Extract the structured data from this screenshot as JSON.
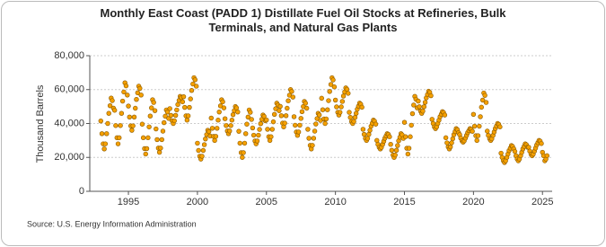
{
  "chart_data": {
    "type": "scatter",
    "title": "Monthly East Coast (PADD 1) Distillate Fuel Oil Stocks at Refineries, Bulk Terminals, and Natural Gas Plants",
    "y_label": "Thousand Barrels",
    "source": "Source: U.S. Energy Information Administration",
    "color": "#f5a000",
    "edge_color": "#8a5a00",
    "xlim": [
      1992.2,
      2025.7
    ],
    "xticks": [
      1995,
      2000,
      2005,
      2010,
      2015,
      2020,
      2025
    ],
    "ylim": [
      0,
      80000
    ],
    "yticks": [
      {
        "value": 0,
        "label": "0"
      },
      {
        "value": 20000,
        "label": "20,000"
      },
      {
        "value": 40000,
        "label": "40,000"
      },
      {
        "value": 60000,
        "label": "60,000"
      },
      {
        "value": 80000,
        "label": "80,000"
      }
    ],
    "grid": true,
    "x": [
      1993,
      1993.08,
      1993.17,
      1993.25,
      1993.33,
      1993.42,
      1993.5,
      1993.58,
      1993.67,
      1993.75,
      1993.83,
      1993.92,
      1994,
      1994.08,
      1994.17,
      1994.25,
      1994.33,
      1994.42,
      1994.5,
      1994.58,
      1994.67,
      1994.75,
      1994.83,
      1994.92,
      1995,
      1995.08,
      1995.17,
      1995.25,
      1995.33,
      1995.42,
      1995.5,
      1995.58,
      1995.67,
      1995.75,
      1995.83,
      1995.92,
      1996,
      1996.08,
      1996.17,
      1996.25,
      1996.33,
      1996.42,
      1996.5,
      1996.58,
      1996.67,
      1996.75,
      1996.83,
      1996.92,
      1997,
      1997.08,
      1997.17,
      1997.25,
      1997.33,
      1997.42,
      1997.5,
      1997.58,
      1997.67,
      1997.75,
      1997.83,
      1997.92,
      1998,
      1998.08,
      1998.17,
      1998.25,
      1998.33,
      1998.42,
      1998.5,
      1998.58,
      1998.67,
      1998.75,
      1998.83,
      1998.92,
      1999,
      1999.08,
      1999.17,
      1999.25,
      1999.33,
      1999.42,
      1999.5,
      1999.58,
      1999.67,
      1999.75,
      1999.83,
      1999.92,
      2000,
      2000.08,
      2000.17,
      2000.25,
      2000.33,
      2000.42,
      2000.5,
      2000.58,
      2000.67,
      2000.75,
      2000.83,
      2000.92,
      2001,
      2001.08,
      2001.17,
      2001.25,
      2001.33,
      2001.42,
      2001.5,
      2001.58,
      2001.67,
      2001.75,
      2001.83,
      2001.92,
      2002,
      2002.08,
      2002.17,
      2002.25,
      2002.33,
      2002.42,
      2002.5,
      2002.58,
      2002.67,
      2002.75,
      2002.83,
      2002.92,
      2003,
      2003.08,
      2003.17,
      2003.25,
      2003.33,
      2003.42,
      2003.5,
      2003.58,
      2003.67,
      2003.75,
      2003.83,
      2003.92,
      2004,
      2004.08,
      2004.17,
      2004.25,
      2004.33,
      2004.42,
      2004.5,
      2004.58,
      2004.67,
      2004.75,
      2004.83,
      2004.92,
      2005,
      2005.08,
      2005.17,
      2005.25,
      2005.33,
      2005.42,
      2005.5,
      2005.58,
      2005.67,
      2005.75,
      2005.83,
      2005.92,
      2006,
      2006.08,
      2006.17,
      2006.25,
      2006.33,
      2006.42,
      2006.5,
      2006.58,
      2006.67,
      2006.75,
      2006.83,
      2006.92,
      2007,
      2007.08,
      2007.17,
      2007.25,
      2007.33,
      2007.42,
      2007.5,
      2007.58,
      2007.67,
      2007.75,
      2007.83,
      2007.92,
      2008,
      2008.08,
      2008.17,
      2008.25,
      2008.33,
      2008.42,
      2008.5,
      2008.58,
      2008.67,
      2008.75,
      2008.83,
      2008.92,
      2009,
      2009.08,
      2009.17,
      2009.25,
      2009.33,
      2009.42,
      2009.5,
      2009.58,
      2009.67,
      2009.75,
      2009.83,
      2009.92,
      2010,
      2010.08,
      2010.17,
      2010.25,
      2010.33,
      2010.42,
      2010.5,
      2010.58,
      2010.67,
      2010.75,
      2010.83,
      2010.92,
      2011,
      2011.08,
      2011.17,
      2011.25,
      2011.33,
      2011.42,
      2011.5,
      2011.58,
      2011.67,
      2011.75,
      2011.83,
      2011.92,
      2012,
      2012.08,
      2012.17,
      2012.25,
      2012.33,
      2012.42,
      2012.5,
      2012.58,
      2012.67,
      2012.75,
      2012.83,
      2012.92,
      2013,
      2013.08,
      2013.17,
      2013.25,
      2013.33,
      2013.42,
      2013.5,
      2013.58,
      2013.67,
      2013.75,
      2013.83,
      2013.92,
      2014,
      2014.08,
      2014.17,
      2014.25,
      2014.33,
      2014.42,
      2014.5,
      2014.58,
      2014.67,
      2014.75,
      2014.83,
      2014.92,
      2015,
      2015.08,
      2015.17,
      2015.25,
      2015.33,
      2015.42,
      2015.5,
      2015.58,
      2015.67,
      2015.75,
      2015.83,
      2015.92,
      2016,
      2016.08,
      2016.17,
      2016.25,
      2016.33,
      2016.42,
      2016.5,
      2016.58,
      2016.67,
      2016.75,
      2016.83,
      2016.92,
      2017,
      2017.08,
      2017.17,
      2017.25,
      2017.33,
      2017.42,
      2017.5,
      2017.58,
      2017.67,
      2017.75,
      2017.83,
      2017.92,
      2018,
      2018.08,
      2018.17,
      2018.25,
      2018.33,
      2018.42,
      2018.5,
      2018.58,
      2018.67,
      2018.75,
      2018.83,
      2018.92,
      2019,
      2019.08,
      2019.17,
      2019.25,
      2019.33,
      2019.42,
      2019.5,
      2019.58,
      2019.67,
      2019.75,
      2019.83,
      2019.92,
      2020,
      2020.08,
      2020.17,
      2020.25,
      2020.33,
      2020.42,
      2020.5,
      2020.58,
      2020.67,
      2020.75,
      2020.83,
      2020.92,
      2021,
      2021.08,
      2021.17,
      2021.25,
      2021.33,
      2021.42,
      2021.5,
      2021.58,
      2021.67,
      2021.75,
      2021.83,
      2021.92,
      2022,
      2022.08,
      2022.17,
      2022.25,
      2022.33,
      2022.42,
      2022.5,
      2022.58,
      2022.67,
      2022.75,
      2022.83,
      2022.92,
      2023,
      2023.08,
      2023.17,
      2023.25,
      2023.33,
      2023.42,
      2023.5,
      2023.58,
      2023.67,
      2023.75,
      2023.83,
      2023.92,
      2024,
      2024.08,
      2024.17,
      2024.25,
      2024.33,
      2024.42,
      2024.5,
      2024.58,
      2024.67,
      2024.75,
      2024.83,
      2024.92,
      2025,
      2025.08,
      2025.17,
      2025.25,
      2025.33
    ],
    "values": [
      41500,
      34000,
      28000,
      25000,
      28000,
      34000,
      40000,
      46000,
      50500,
      55000,
      53500,
      49000,
      47800,
      38800,
      31600,
      28000,
      31600,
      38800,
      46000,
      53200,
      58600,
      64000,
      62200,
      56800,
      50300,
      43800,
      38600,
      36000,
      38600,
      43800,
      49000,
      54200,
      58100,
      62000,
      60700,
      56800,
      39600,
      31600,
      25200,
      22000,
      25200,
      31600,
      38000,
      44400,
      49200,
      54000,
      52400,
      47600,
      36800,
      30500,
      25500,
      23000,
      25500,
      30500,
      35500,
      40500,
      44300,
      48000,
      46800,
      43000,
      48800,
      44800,
      41600,
      40000,
      41600,
      44800,
      48000,
      51200,
      53600,
      56000,
      55200,
      52800,
      55800,
      49500,
      44500,
      42000,
      44500,
      49500,
      54500,
      59500,
      63300,
      67000,
      65800,
      62000,
      28400,
      24100,
      20700,
      19000,
      20700,
      24100,
      27500,
      30900,
      33500,
      36000,
      35200,
      32600,
      43200,
      37200,
      32400,
      30000,
      32400,
      37200,
      42000,
      46800,
      50400,
      54000,
      52800,
      49200,
      42800,
      38800,
      35600,
      34000,
      35600,
      38800,
      42000,
      45200,
      47600,
      50000,
      49200,
      46800,
      35400,
      28400,
      22800,
      20000,
      22800,
      28400,
      34000,
      39600,
      43800,
      48000,
      46600,
      42400,
      37400,
      33100,
      29700,
      28000,
      29700,
      33100,
      36500,
      39900,
      42500,
      45000,
      44200,
      41600,
      42100,
      36600,
      32200,
      30000,
      32200,
      36600,
      41000,
      45400,
      48700,
      52000,
      50900,
      47600,
      50100,
      44600,
      40200,
      38000,
      40200,
      44600,
      49000,
      53400,
      56700,
      60000,
      58900,
      55600,
      44000,
      39000,
      35000,
      33000,
      35000,
      39000,
      43000,
      47000,
      50000,
      53000,
      52000,
      49000,
      36600,
      31300,
      27100,
      25000,
      27100,
      31300,
      35500,
      39700,
      42900,
      46000,
      45000,
      41800,
      54900,
      48100,
      42700,
      40000,
      42700,
      48100,
      53500,
      58900,
      63000,
      67000,
      65700,
      61600,
      53800,
      49800,
      46600,
      45000,
      46600,
      49800,
      53000,
      56200,
      58600,
      61000,
      60200,
      57800,
      46600,
      43600,
      41200,
      40000,
      41200,
      43600,
      46000,
      48400,
      50200,
      52000,
      51400,
      49600,
      36600,
      33600,
      31200,
      30000,
      31200,
      33600,
      36000,
      38400,
      40200,
      42000,
      41400,
      39600,
      30000,
      27700,
      25900,
      25000,
      25900,
      27700,
      29500,
      31300,
      32700,
      34000,
      33600,
      32200,
      27700,
      24200,
      21400,
      20000,
      21400,
      24200,
      27000,
      29800,
      31900,
      34000,
      33300,
      31200,
      40700,
      32200,
      25400,
      22000,
      25400,
      32200,
      39000,
      45800,
      50900,
      56000,
      54300,
      49200,
      53200,
      49900,
      47300,
      46000,
      47300,
      49900,
      52500,
      55100,
      57100,
      59000,
      58400,
      56400,
      42500,
      40000,
      38000,
      37000,
      38000,
      40000,
      42000,
      44000,
      45500,
      47000,
      46500,
      45000,
      31600,
      28600,
      26200,
      25000,
      26200,
      28600,
      31000,
      33400,
      35200,
      37000,
      36400,
      34600,
      33400,
      31400,
      29800,
      29000,
      29800,
      31400,
      33000,
      34600,
      35800,
      37000,
      36600,
      35400,
      45400,
      38400,
      32800,
      30000,
      32800,
      38400,
      44000,
      49600,
      53800,
      58000,
      56600,
      52400,
      35500,
      33000,
      31000,
      30000,
      31000,
      33000,
      35000,
      37000,
      38500,
      40000,
      39500,
      38000,
      22500,
      20000,
      18000,
      17000,
      18000,
      20000,
      22000,
      24000,
      25500,
      27000,
      26500,
      25000,
      23500,
      21000,
      19000,
      18000,
      19000,
      21000,
      23000,
      25000,
      26500,
      28000,
      27500,
      26000,
      26000,
      23700,
      21900,
      21000,
      21900,
      23700,
      25500,
      27300,
      28700,
      30000,
      29600,
      28200,
      23000,
      21000,
      18000,
      19000,
      21000
    ]
  }
}
